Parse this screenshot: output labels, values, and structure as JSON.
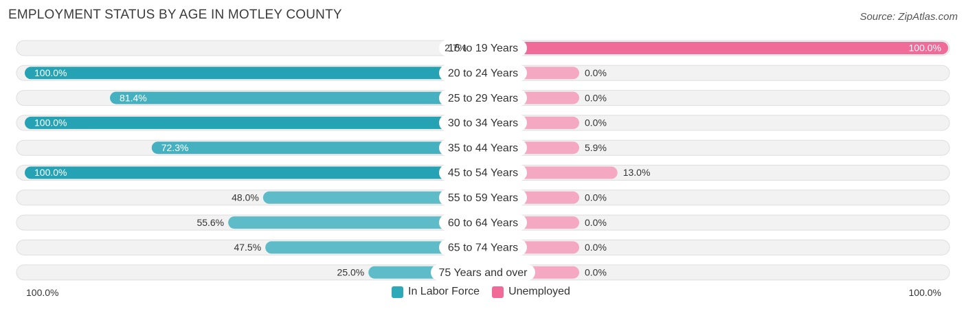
{
  "chart_data": {
    "type": "bar",
    "orientation": "horizontal-diverging",
    "title": "EMPLOYMENT STATUS BY AGE IN MOTLEY COUNTY",
    "source": "Source: ZipAtlas.com",
    "categories": [
      "16 to 19 Years",
      "20 to 24 Years",
      "25 to 29 Years",
      "30 to 34 Years",
      "35 to 44 Years",
      "45 to 54 Years",
      "55 to 59 Years",
      "60 to 64 Years",
      "65 to 74 Years",
      "75 Years and over"
    ],
    "series": [
      {
        "name": "In Labor Force",
        "color": "#2fa8b8",
        "values": [
          2.7,
          100.0,
          81.4,
          100.0,
          72.3,
          100.0,
          48.0,
          55.6,
          47.5,
          25.0
        ],
        "labels": [
          "2.7%",
          "100.0%",
          "81.4%",
          "100.0%",
          "72.3%",
          "100.0%",
          "48.0%",
          "55.6%",
          "47.5%",
          "25.0%"
        ]
      },
      {
        "name": "Unemployed",
        "color": "#f06b97",
        "values": [
          100.0,
          0.0,
          0.0,
          0.0,
          5.9,
          13.0,
          0.0,
          0.0,
          0.0,
          0.0
        ],
        "labels": [
          "100.0%",
          "0.0%",
          "0.0%",
          "0.0%",
          "5.9%",
          "13.0%",
          "0.0%",
          "0.0%",
          "0.0%",
          "0.0%"
        ]
      }
    ],
    "xlim": [
      0,
      100
    ],
    "axis_left_label": "100.0%",
    "axis_right_label": "100.0%",
    "legend_position": "bottom-center"
  }
}
